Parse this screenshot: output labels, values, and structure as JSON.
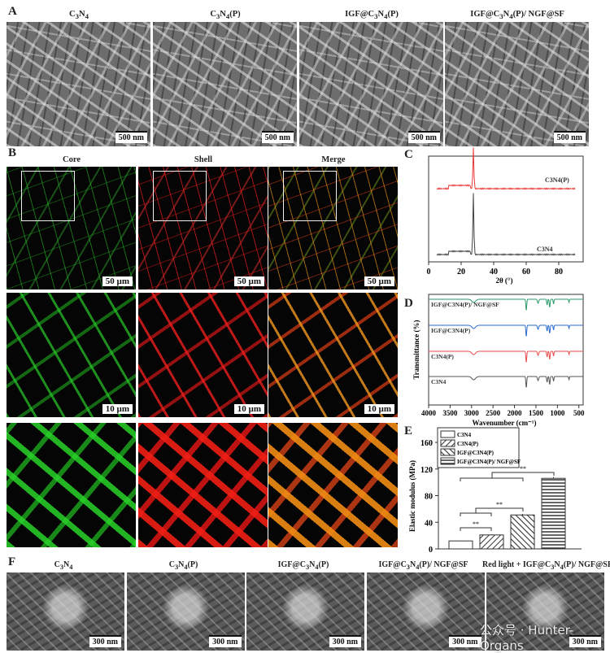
{
  "panels": {
    "A": "A",
    "B": "B",
    "C": "C",
    "D": "D",
    "E": "E",
    "F": "F"
  },
  "panel_a": {
    "titles": [
      "C3N4",
      "C3N4(P)",
      "IGF@C3N4(P)",
      "IGF@C3N4(P)/ NGF@SF"
    ],
    "scale_bar": "500 nm"
  },
  "panel_b": {
    "titles": [
      "Core",
      "Shell",
      "Merge"
    ],
    "scale_row1": "50 µm",
    "scale_row2": "10 µm",
    "colors": {
      "core": "#2ec82e",
      "shell": "#e81e1e",
      "merge": "#f0961e"
    }
  },
  "panel_f": {
    "titles": [
      "C3N4",
      "C3N4(P)",
      "IGF@C3N4(P)",
      "IGF@C3N4(P)/ NGF@SF",
      "Red light + IGF@C3N4(P)/ NGF@SF"
    ],
    "scale_bar": "300 nm"
  },
  "watermark": "公众号 · Hunter-Organs",
  "chart_data": [
    {
      "panel": "C",
      "type": "line",
      "xlabel": "2θ (°)",
      "ylabel": "",
      "xlim": [
        0,
        95
      ],
      "xticks": [
        "0",
        "20",
        "40",
        "60",
        "80"
      ],
      "series": [
        {
          "name": "C3N4(P)",
          "color": "#e83a3a",
          "peak_2theta": 27.5
        },
        {
          "name": "C3N4",
          "color": "#444444",
          "peak_2theta": 27.5
        }
      ]
    },
    {
      "panel": "D",
      "type": "line",
      "xlabel": "Wavenumber (cm⁻¹)",
      "ylabel": "Transmittance (%)",
      "xlim": [
        4000,
        400
      ],
      "xticks": [
        "4000",
        "3500",
        "3000",
        "2500",
        "2000",
        "1500",
        "1000",
        "500"
      ],
      "series": [
        {
          "name": "IGF@C3N4(P)/ NGF@SF",
          "color": "#2a9a6a"
        },
        {
          "name": "IGF@C3N4(P)",
          "color": "#2a6ad0"
        },
        {
          "name": "C3N4(P)",
          "color": "#e84a4a"
        },
        {
          "name": "C3N4",
          "color": "#555555"
        }
      ],
      "peaks_cm1": [
        2950,
        1725,
        1450,
        1240,
        1180,
        1090,
        730
      ]
    },
    {
      "panel": "E",
      "type": "bar",
      "ylabel": "Elastic modulus (MPa)",
      "ylim": [
        0,
        160
      ],
      "yticks": [
        "0",
        "40",
        "80",
        "120",
        "160"
      ],
      "categories": [
        "C3N4",
        "C3N4(P)",
        "IGF@C3N4(P)",
        "IGF@C3N4(P)/ NGF@SF"
      ],
      "values": [
        12,
        21,
        51,
        106
      ],
      "errors": [
        0.5,
        1,
        1.5,
        2
      ],
      "legend": [
        "C3N4",
        "C3N4(P)",
        "IGF@C3N4(P)",
        "IGF@C3N4(P)/ NGF@SF"
      ],
      "legend_position": "top-left",
      "significance": "**"
    }
  ]
}
